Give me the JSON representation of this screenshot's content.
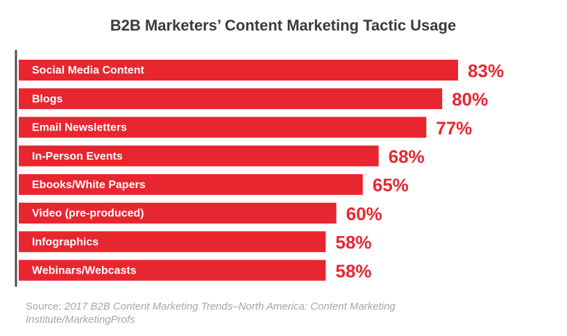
{
  "chart_data": {
    "type": "bar",
    "orientation": "horizontal",
    "title": "B2B Marketers’ Content Marketing Tactic Usage",
    "categories": [
      "Social Media Content",
      "Blogs",
      "Email Newsletters",
      "In-Person Events",
      "Ebooks/White Papers",
      "Video (pre-produced)",
      "Infographics",
      "Webinars/Webcasts"
    ],
    "values": [
      83,
      80,
      77,
      68,
      65,
      60,
      58,
      58
    ],
    "value_labels": [
      "83%",
      "80%",
      "77%",
      "68%",
      "65%",
      "60%",
      "58%",
      "58%"
    ],
    "color": "#e8262f",
    "source_label": "Source:",
    "source": "2017 B2B Content Marketing Trends–North America: Content Marketing Institute/MarketingProfs"
  }
}
